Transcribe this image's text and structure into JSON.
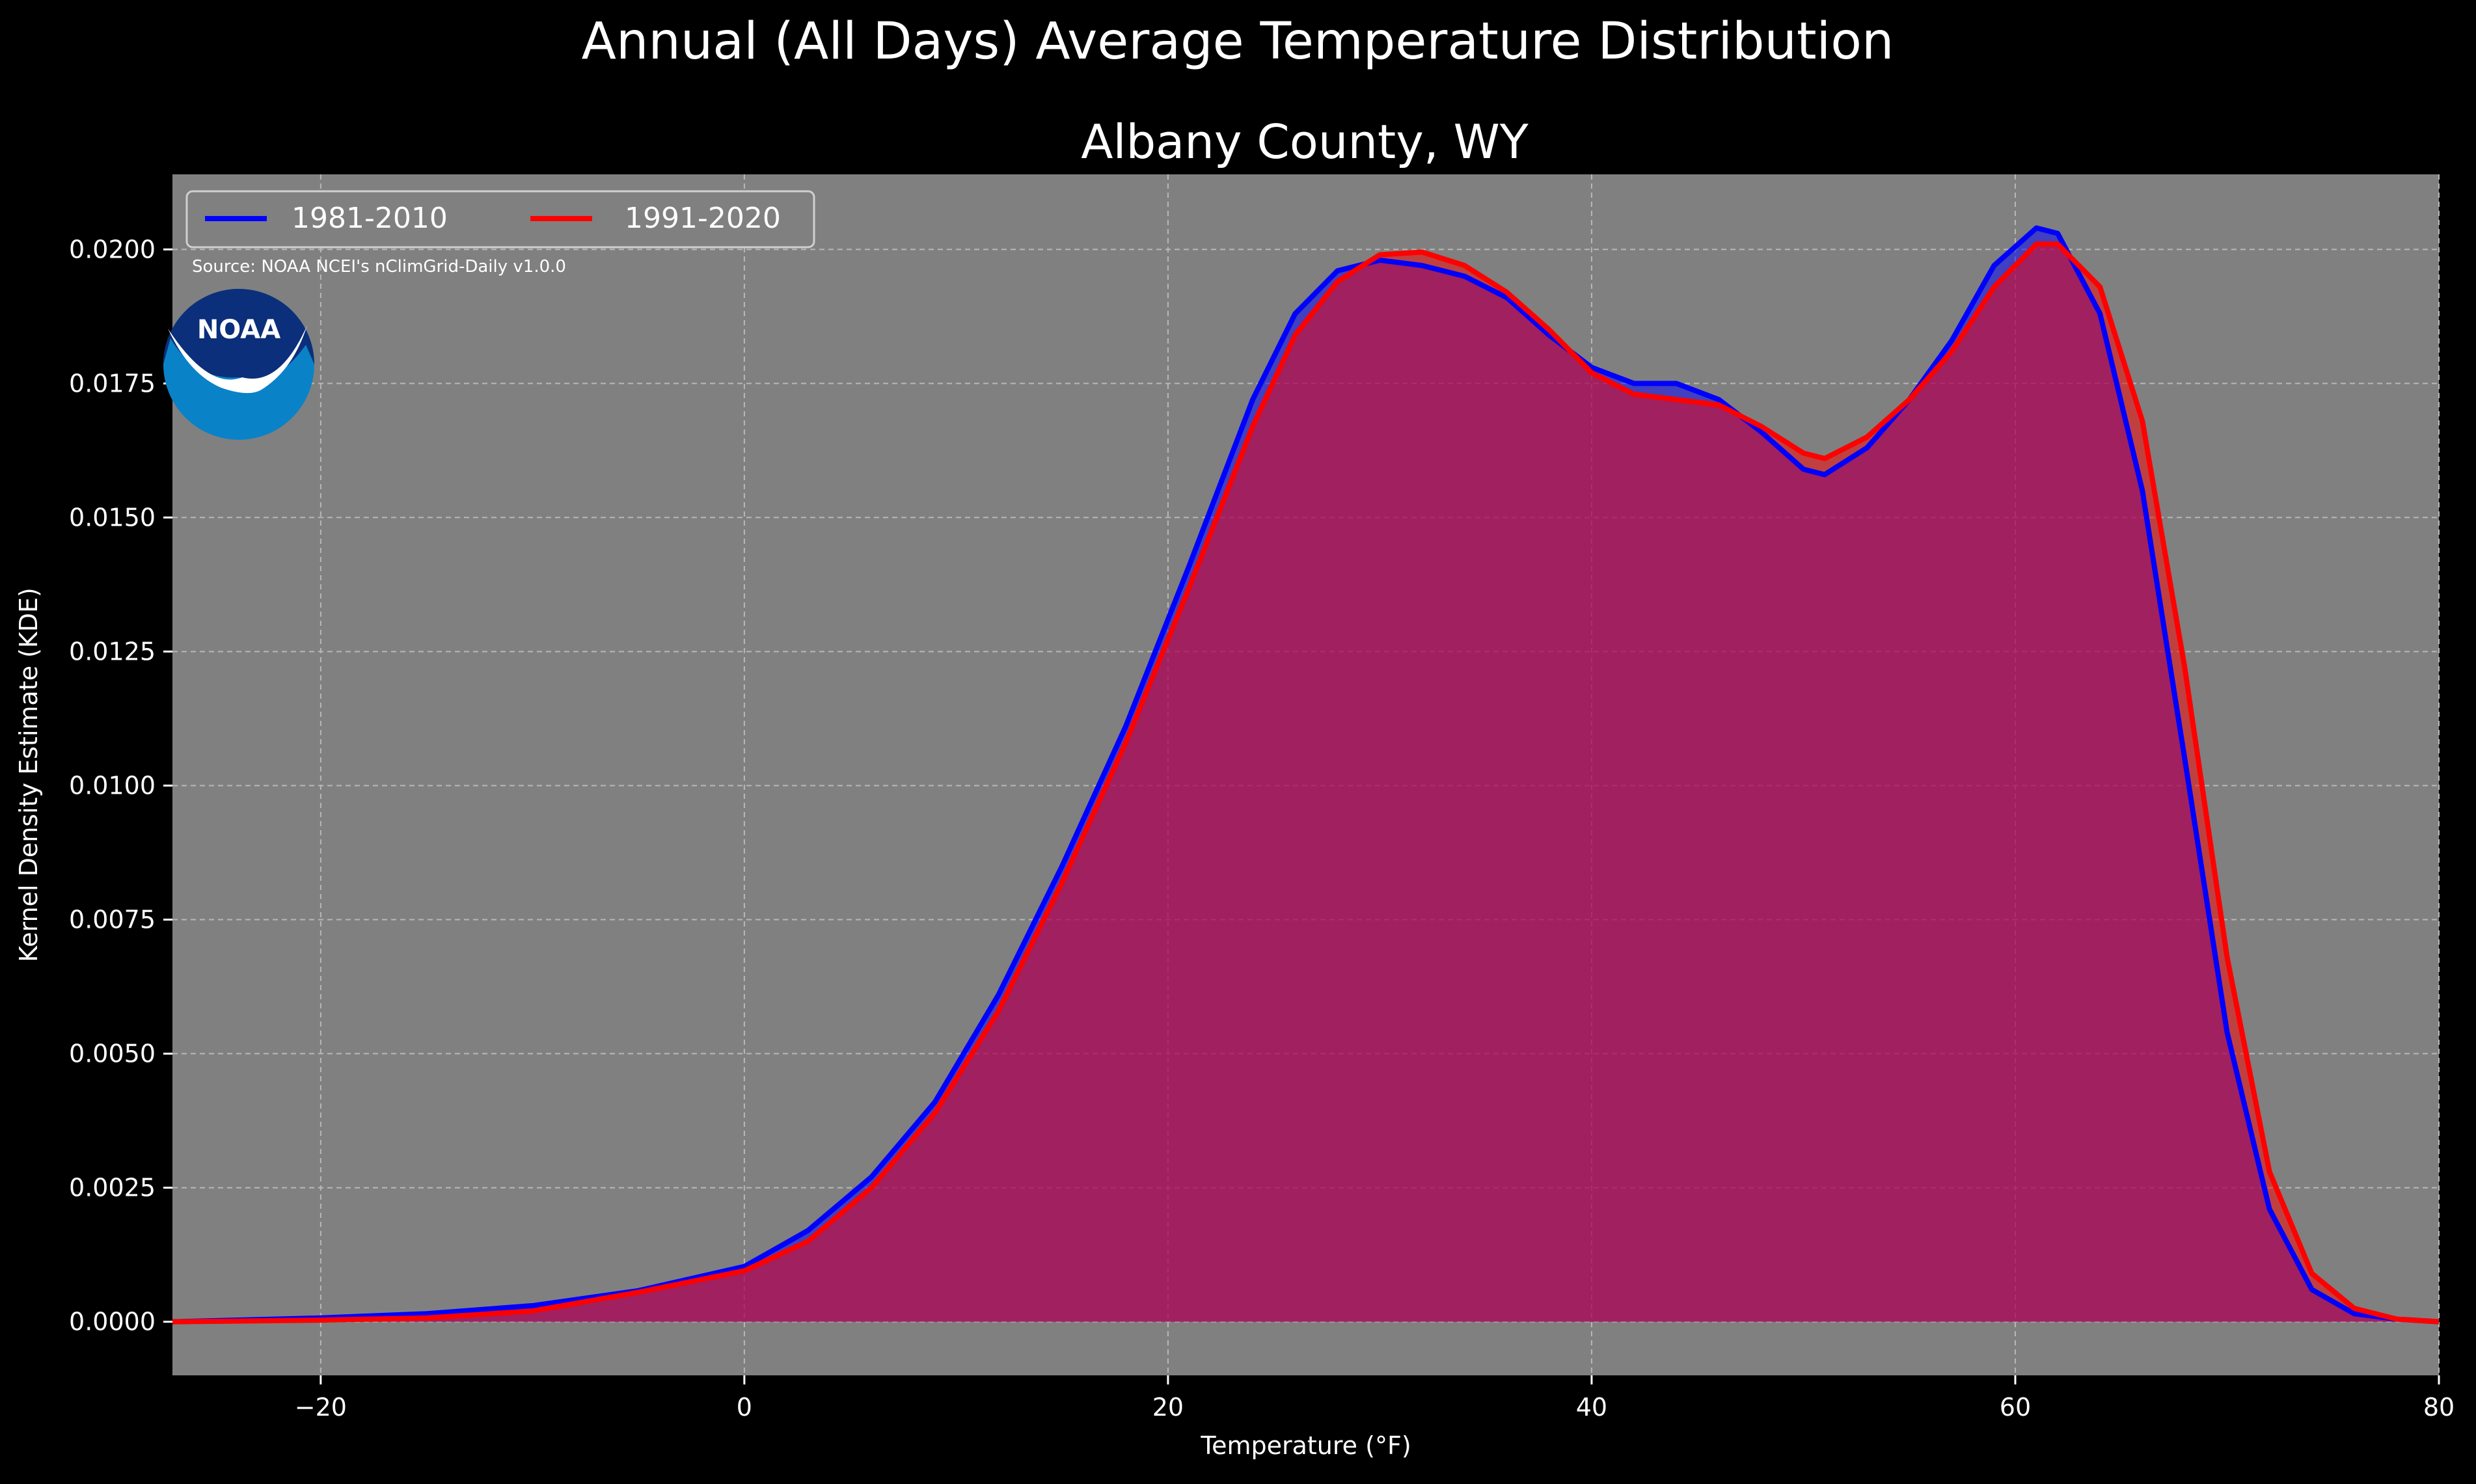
{
  "chart_data": {
    "type": "area",
    "title": "Annual (All Days) Average Temperature Distribution",
    "subtitle": "Albany County, WY",
    "xlabel": "Temperature (°F)",
    "ylabel": "Kernel Density Estimate (KDE)",
    "xlim": [
      -27,
      80
    ],
    "ylim": [
      -0.001,
      0.0214
    ],
    "x_ticks": [
      -20,
      0,
      20,
      40,
      60,
      80
    ],
    "x_tick_labels": [
      "−20",
      "0",
      "20",
      "40",
      "60",
      "80"
    ],
    "y_ticks": [
      0.0,
      0.0025,
      0.005,
      0.0075,
      0.01,
      0.0125,
      0.015,
      0.0175,
      0.02
    ],
    "y_tick_labels": [
      "0.0000",
      "0.0025",
      "0.0050",
      "0.0075",
      "0.0100",
      "0.0125",
      "0.0150",
      "0.0175",
      "0.0200"
    ],
    "grid": true,
    "legend_position": "top-left",
    "annotation": "Source: NOAA NCEI's nClimGrid-Daily v1.0.0",
    "logo_text": "NOAA",
    "series": [
      {
        "name": "1981-2010",
        "color": "#0000ff",
        "points": [
          [
            -27,
            0.0
          ],
          [
            -20,
            7e-05
          ],
          [
            -15,
            0.00015
          ],
          [
            -10,
            0.0003
          ],
          [
            -5,
            0.00058
          ],
          [
            0,
            0.00103
          ],
          [
            3,
            0.0017
          ],
          [
            6,
            0.0027
          ],
          [
            9,
            0.0041
          ],
          [
            12,
            0.0061
          ],
          [
            15,
            0.0085
          ],
          [
            18,
            0.0111
          ],
          [
            21,
            0.0141
          ],
          [
            24,
            0.0172
          ],
          [
            26,
            0.0188
          ],
          [
            28,
            0.0196
          ],
          [
            30,
            0.0198
          ],
          [
            32,
            0.0197
          ],
          [
            34,
            0.0195
          ],
          [
            36,
            0.0191
          ],
          [
            38,
            0.0184
          ],
          [
            40,
            0.0178
          ],
          [
            42,
            0.0175
          ],
          [
            44,
            0.0175
          ],
          [
            46,
            0.0172
          ],
          [
            48,
            0.0166
          ],
          [
            50,
            0.0159
          ],
          [
            51,
            0.0158
          ],
          [
            53,
            0.0163
          ],
          [
            55,
            0.0172
          ],
          [
            57,
            0.0183
          ],
          [
            59,
            0.0197
          ],
          [
            61,
            0.0204
          ],
          [
            62,
            0.0203
          ],
          [
            64,
            0.0188
          ],
          [
            66,
            0.0155
          ],
          [
            68,
            0.0105
          ],
          [
            70,
            0.0054
          ],
          [
            72,
            0.0021
          ],
          [
            74,
            0.0006
          ],
          [
            76,
            0.00015
          ],
          [
            78,
            5e-05
          ],
          [
            80,
            0.0
          ]
        ]
      },
      {
        "name": "1991-2020",
        "color": "#ff0000",
        "points": [
          [
            -27,
            0.0
          ],
          [
            -20,
            3e-05
          ],
          [
            -15,
            7e-05
          ],
          [
            -10,
            0.0002
          ],
          [
            -5,
            0.00055
          ],
          [
            0,
            0.00095
          ],
          [
            3,
            0.0015
          ],
          [
            6,
            0.0025
          ],
          [
            9,
            0.0039
          ],
          [
            12,
            0.0058
          ],
          [
            15,
            0.0082
          ],
          [
            18,
            0.0108
          ],
          [
            21,
            0.0137
          ],
          [
            24,
            0.0167
          ],
          [
            26,
            0.0184
          ],
          [
            28,
            0.0194
          ],
          [
            30,
            0.0199
          ],
          [
            32,
            0.01995
          ],
          [
            34,
            0.0197
          ],
          [
            36,
            0.0192
          ],
          [
            38,
            0.0185
          ],
          [
            40,
            0.0177
          ],
          [
            42,
            0.0173
          ],
          [
            44,
            0.0172
          ],
          [
            46,
            0.0171
          ],
          [
            48,
            0.0167
          ],
          [
            50,
            0.0162
          ],
          [
            51,
            0.0161
          ],
          [
            53,
            0.0165
          ],
          [
            55,
            0.0172
          ],
          [
            57,
            0.0181
          ],
          [
            59,
            0.0193
          ],
          [
            61,
            0.0201
          ],
          [
            62,
            0.0201
          ],
          [
            64,
            0.0193
          ],
          [
            66,
            0.0168
          ],
          [
            68,
            0.0122
          ],
          [
            70,
            0.0068
          ],
          [
            72,
            0.0028
          ],
          [
            74,
            0.0009
          ],
          [
            76,
            0.00025
          ],
          [
            78,
            5e-05
          ],
          [
            80,
            0.0
          ]
        ]
      }
    ]
  }
}
